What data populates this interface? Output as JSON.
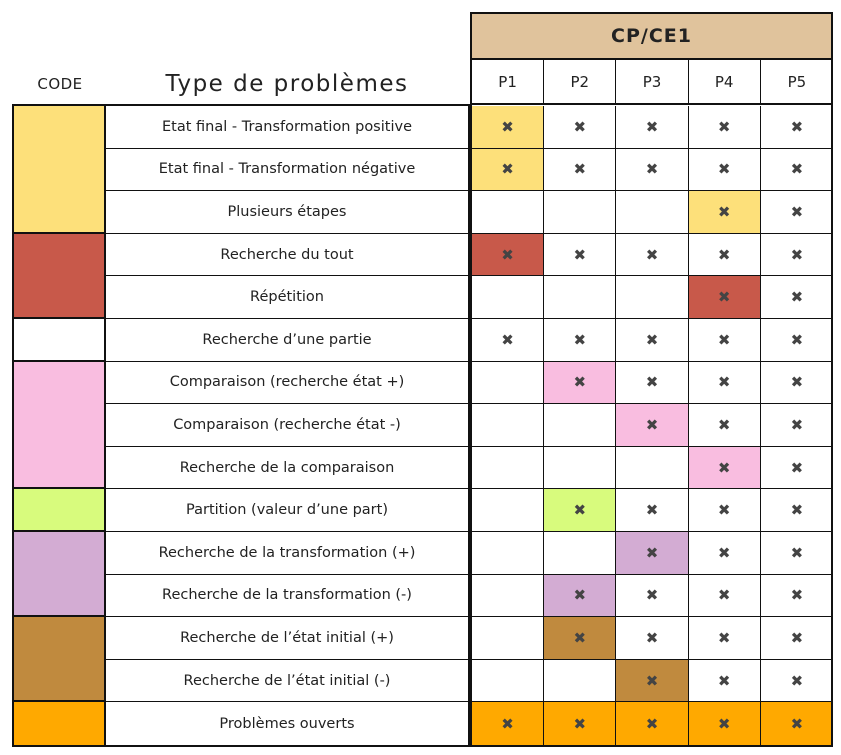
{
  "header": {
    "code_label": "CODE",
    "type_label": "Type de problèmes",
    "grade_label": "CP/CE1",
    "periods": [
      "P1",
      "P2",
      "P3",
      "P4",
      "P5"
    ]
  },
  "mark_symbol": "✖",
  "colors": {
    "yellow": "#fde07a",
    "red": "#c8594a",
    "white": "#ffffff",
    "pink": "#f9bde0",
    "green": "#d8fb7d",
    "purple": "#d3acd3",
    "brown": "#c08a3e",
    "orange": "#ffa900",
    "header_tan": "#e0c39c"
  },
  "code_groups": [
    {
      "color": "yellow",
      "rows": 3
    },
    {
      "color": "red",
      "rows": 2
    },
    {
      "color": "white",
      "rows": 1
    },
    {
      "color": "pink",
      "rows": 3
    },
    {
      "color": "green",
      "rows": 1
    },
    {
      "color": "purple",
      "rows": 2
    },
    {
      "color": "brown",
      "rows": 2
    },
    {
      "color": "orange",
      "rows": 1
    }
  ],
  "rows": [
    {
      "label": "Etat final - Transformation positive",
      "marks": [
        true,
        true,
        true,
        true,
        true
      ],
      "highlight": [
        0,
        "yellow"
      ]
    },
    {
      "label": "Etat final - Transformation négative",
      "marks": [
        true,
        true,
        true,
        true,
        true
      ],
      "highlight": [
        0,
        "yellow"
      ]
    },
    {
      "label": "Plusieurs étapes",
      "marks": [
        false,
        false,
        false,
        true,
        true
      ],
      "highlight": [
        3,
        "yellow"
      ]
    },
    {
      "label": "Recherche du tout",
      "marks": [
        true,
        true,
        true,
        true,
        true
      ],
      "highlight": [
        0,
        "red"
      ]
    },
    {
      "label": "Répétition",
      "marks": [
        false,
        false,
        false,
        true,
        true
      ],
      "highlight": [
        3,
        "red"
      ]
    },
    {
      "label": "Recherche d’une partie",
      "marks": [
        true,
        true,
        true,
        true,
        true
      ],
      "highlight": null
    },
    {
      "label": "Comparaison (recherche état +)",
      "marks": [
        false,
        true,
        true,
        true,
        true
      ],
      "highlight": [
        1,
        "pink"
      ]
    },
    {
      "label": "Comparaison (recherche état -)",
      "marks": [
        false,
        false,
        true,
        true,
        true
      ],
      "highlight": [
        2,
        "pink"
      ]
    },
    {
      "label": "Recherche de la comparaison",
      "marks": [
        false,
        false,
        false,
        true,
        true
      ],
      "highlight": [
        3,
        "pink"
      ]
    },
    {
      "label": "Partition (valeur d’une part)",
      "marks": [
        false,
        true,
        true,
        true,
        true
      ],
      "highlight": [
        1,
        "green"
      ]
    },
    {
      "label": "Recherche de la transformation (+)",
      "marks": [
        false,
        false,
        true,
        true,
        true
      ],
      "highlight": [
        2,
        "purple"
      ]
    },
    {
      "label": "Recherche de la transformation (-)",
      "marks": [
        false,
        true,
        true,
        true,
        true
      ],
      "highlight": [
        1,
        "purple"
      ]
    },
    {
      "label": "Recherche de l’état initial (+)",
      "marks": [
        false,
        true,
        true,
        true,
        true
      ],
      "highlight": [
        1,
        "brown"
      ]
    },
    {
      "label": "Recherche de l’état initial (-)",
      "marks": [
        false,
        false,
        true,
        true,
        true
      ],
      "highlight": [
        2,
        "brown"
      ]
    },
    {
      "label": "Problèmes ouverts",
      "marks": [
        true,
        true,
        true,
        true,
        true
      ],
      "highlight": [
        0,
        "orange",
        5
      ]
    }
  ]
}
